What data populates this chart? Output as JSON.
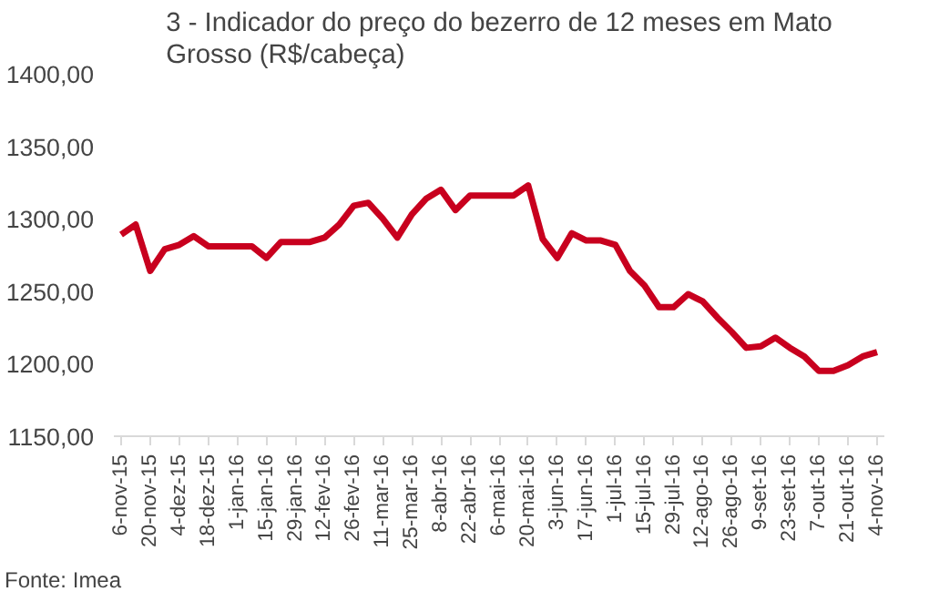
{
  "chart_data": {
    "type": "line",
    "title": "3 - Indicador do preço do bezerro de 12 meses em Mato Grosso (R$/cabeça)",
    "categories": [
      "6-nov-15",
      null,
      "20-nov-15",
      null,
      "4-dez-15",
      null,
      "18-dez-15",
      null,
      "1-jan-16",
      null,
      "15-jan-16",
      null,
      "29-jan-16",
      null,
      "12-fev-16",
      null,
      "26-fev-16",
      null,
      "11-mar-16",
      null,
      "25-mar-16",
      null,
      "8-abr-16",
      null,
      "22-abr-16",
      null,
      "6-mai-16",
      null,
      "20-mai-16",
      null,
      "3-jun-16",
      null,
      "17-jun-16",
      null,
      "1-jul-16",
      null,
      "15-jul-16",
      null,
      "29-jul-16",
      null,
      "12-ago-16",
      null,
      "26-ago-16",
      null,
      "9-set-16",
      null,
      "23-set-16",
      null,
      "7-out-16",
      null,
      "21-out-16",
      null,
      "4-nov-16"
    ],
    "series": [
      {
        "color": "#c8001e",
        "values": [
          1289,
          1296,
          1264,
          1279,
          1282,
          1288,
          1281,
          1281,
          1281,
          1281,
          1273,
          1284,
          1284,
          1284,
          1287,
          1296,
          1309,
          1311,
          1300,
          1287,
          1303,
          1314,
          1320,
          1306,
          1316,
          1316,
          1316,
          1316,
          1323,
          1286,
          1273,
          1290,
          1285,
          1285,
          1282,
          1264,
          1254,
          1239,
          1239,
          1248,
          1243,
          1232,
          1222,
          1211,
          1212,
          1218,
          1211,
          1205,
          1195,
          1195,
          1199,
          1205,
          1208
        ]
      }
    ],
    "ylim": [
      1150,
      1400
    ],
    "yticks": [
      {
        "value": 1150,
        "label": "1150,00"
      },
      {
        "value": 1200,
        "label": "1200,00"
      },
      {
        "value": 1250,
        "label": "1250,00"
      },
      {
        "value": 1300,
        "label": "1300,00"
      },
      {
        "value": 1350,
        "label": "1350,00"
      },
      {
        "value": 1400,
        "label": "1400,00"
      }
    ],
    "grid": false,
    "marker": "none",
    "line_style": "solid",
    "annotations": [
      "Fonte: Imea"
    ]
  }
}
